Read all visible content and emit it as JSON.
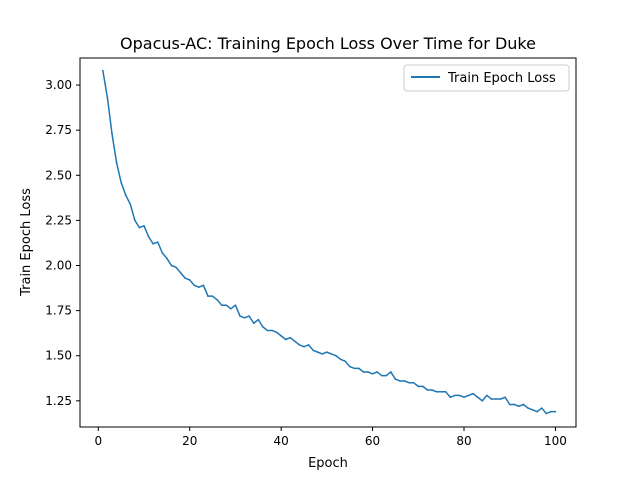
{
  "chart_data": {
    "type": "line",
    "title": "Opacus-AC: Training Epoch Loss Over Time for Duke",
    "xlabel": "Epoch",
    "ylabel": "Train Epoch Loss",
    "xlim": [
      -4,
      104.5
    ],
    "ylim": [
      1.105,
      3.15
    ],
    "x_ticks": [
      0,
      20,
      40,
      60,
      80,
      100
    ],
    "y_ticks": [
      1.25,
      1.5,
      1.75,
      2.0,
      2.25,
      2.5,
      2.75,
      3.0
    ],
    "y_tick_labels": [
      "1.25",
      "1.50",
      "1.75",
      "2.00",
      "2.25",
      "2.50",
      "2.75",
      "3.00"
    ],
    "x_tick_labels": [
      "0",
      "20",
      "40",
      "60",
      "80",
      "100"
    ],
    "grid": false,
    "legend_position": "top-right",
    "series": [
      {
        "name": "Train Epoch Loss",
        "color": "#1f77b4",
        "x": [
          1,
          2,
          3,
          4,
          5,
          6,
          7,
          8,
          9,
          10,
          11,
          12,
          13,
          14,
          15,
          16,
          17,
          18,
          19,
          20,
          21,
          22,
          23,
          24,
          25,
          26,
          27,
          28,
          29,
          30,
          31,
          32,
          33,
          34,
          35,
          36,
          37,
          38,
          39,
          40,
          41,
          42,
          43,
          44,
          45,
          46,
          47,
          48,
          49,
          50,
          51,
          52,
          53,
          54,
          55,
          56,
          57,
          58,
          59,
          60,
          61,
          62,
          63,
          64,
          65,
          66,
          67,
          68,
          69,
          70,
          71,
          72,
          73,
          74,
          75,
          76,
          77,
          78,
          79,
          80,
          81,
          82,
          83,
          84,
          85,
          86,
          87,
          88,
          89,
          90,
          91,
          92,
          93,
          94,
          95,
          96,
          97,
          98,
          99,
          100
        ],
        "values": [
          3.08,
          2.93,
          2.73,
          2.57,
          2.46,
          2.39,
          2.34,
          2.25,
          2.21,
          2.22,
          2.16,
          2.12,
          2.13,
          2.07,
          2.04,
          2.0,
          1.99,
          1.96,
          1.93,
          1.92,
          1.89,
          1.88,
          1.89,
          1.83,
          1.83,
          1.81,
          1.78,
          1.78,
          1.76,
          1.78,
          1.72,
          1.71,
          1.72,
          1.68,
          1.7,
          1.66,
          1.64,
          1.64,
          1.63,
          1.61,
          1.59,
          1.6,
          1.58,
          1.56,
          1.55,
          1.56,
          1.53,
          1.52,
          1.51,
          1.52,
          1.51,
          1.5,
          1.48,
          1.47,
          1.44,
          1.43,
          1.43,
          1.41,
          1.41,
          1.4,
          1.41,
          1.39,
          1.39,
          1.41,
          1.37,
          1.36,
          1.36,
          1.35,
          1.35,
          1.33,
          1.33,
          1.31,
          1.31,
          1.3,
          1.3,
          1.3,
          1.27,
          1.28,
          1.28,
          1.27,
          1.28,
          1.29,
          1.27,
          1.25,
          1.28,
          1.26,
          1.26,
          1.26,
          1.27,
          1.23,
          1.23,
          1.22,
          1.23,
          1.21,
          1.2,
          1.19,
          1.21,
          1.18,
          1.19,
          1.19
        ]
      }
    ]
  }
}
